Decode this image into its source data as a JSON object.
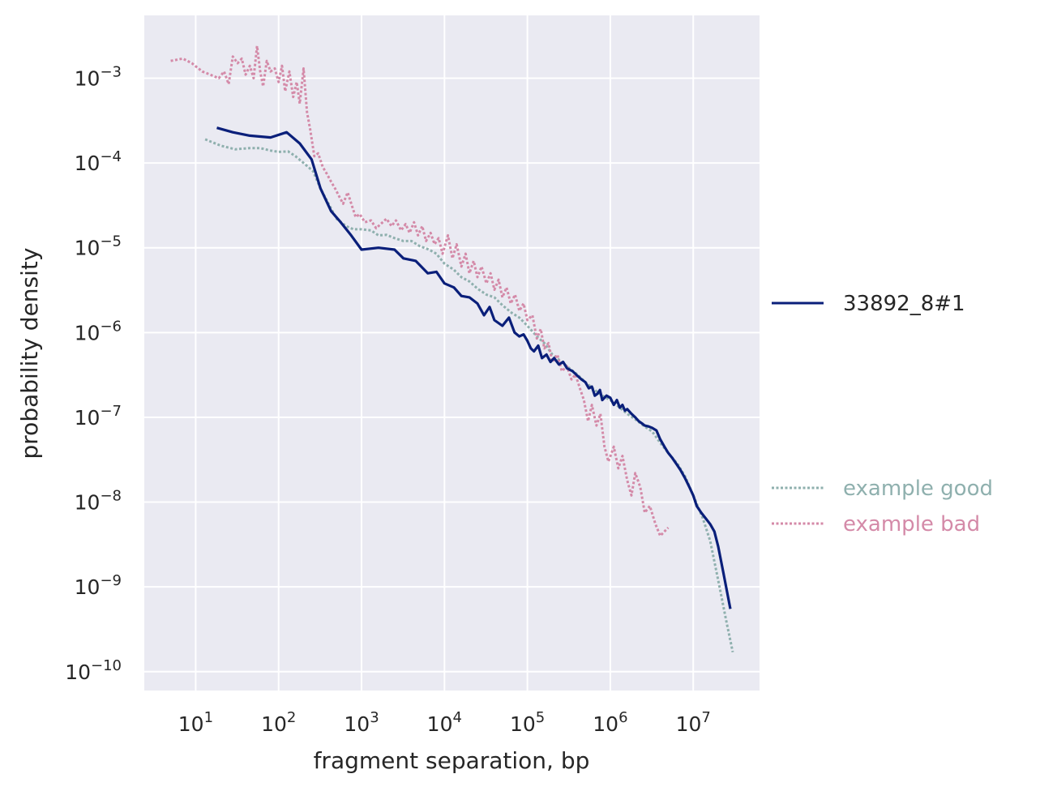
{
  "chart_data": {
    "type": "line",
    "xlabel": "fragment separation, bp",
    "ylabel": "probability density",
    "x_scale": "log",
    "y_scale": "log",
    "xlim": [
      2.4,
      63000000
    ],
    "ylim": [
      6e-11,
      0.0055
    ],
    "x_ticks": [
      {
        "value": 10,
        "base": "10",
        "exp": "1"
      },
      {
        "value": 100,
        "base": "10",
        "exp": "2"
      },
      {
        "value": 1000,
        "base": "10",
        "exp": "3"
      },
      {
        "value": 10000,
        "base": "10",
        "exp": "4"
      },
      {
        "value": 100000,
        "base": "10",
        "exp": "5"
      },
      {
        "value": 1000000,
        "base": "10",
        "exp": "6"
      },
      {
        "value": 10000000,
        "base": "10",
        "exp": "7"
      }
    ],
    "y_ticks": [
      {
        "value": 0.001,
        "base": "10",
        "exp": "−3"
      },
      {
        "value": 0.0001,
        "base": "10",
        "exp": "−4"
      },
      {
        "value": 1e-05,
        "base": "10",
        "exp": "−5"
      },
      {
        "value": 1e-06,
        "base": "10",
        "exp": "−6"
      },
      {
        "value": 1e-07,
        "base": "10",
        "exp": "−7"
      },
      {
        "value": 1e-08,
        "base": "10",
        "exp": "−8"
      },
      {
        "value": 1e-09,
        "base": "10",
        "exp": "−9"
      },
      {
        "value": 1e-10,
        "base": "10",
        "exp": "−10"
      }
    ],
    "grid": true,
    "legend_position": "right",
    "series": [
      {
        "name": "example good",
        "color": "#8fb0ae",
        "style": "dotted",
        "points": [
          [
            13,
            0.00019
          ],
          [
            20,
            0.00016
          ],
          [
            30,
            0.000145
          ],
          [
            45,
            0.00015
          ],
          [
            60,
            0.00015
          ],
          [
            80,
            0.00014
          ],
          [
            100,
            0.000135
          ],
          [
            130,
            0.000137
          ],
          [
            160,
            0.00012
          ],
          [
            200,
            0.0001
          ],
          [
            260,
            8e-05
          ],
          [
            320,
            5e-05
          ],
          [
            400,
            3.3e-05
          ],
          [
            500,
            2.2e-05
          ],
          [
            650,
            1.8e-05
          ],
          [
            800,
            1.65e-05
          ],
          [
            1000,
            1.65e-05
          ],
          [
            1300,
            1.6e-05
          ],
          [
            1600,
            1.4e-05
          ],
          [
            2000,
            1.42e-05
          ],
          [
            2500,
            1.3e-05
          ],
          [
            3200,
            1.2e-05
          ],
          [
            4000,
            1.2e-05
          ],
          [
            5000,
            1.05e-05
          ],
          [
            6500,
            9.5e-06
          ],
          [
            8000,
            8.5e-06
          ],
          [
            10000,
            6.5e-06
          ],
          [
            13000,
            5.5e-06
          ],
          [
            16000,
            4.5e-06
          ],
          [
            20000,
            4e-06
          ],
          [
            25000,
            3.3e-06
          ],
          [
            32000,
            2.8e-06
          ],
          [
            40000,
            2.6e-06
          ],
          [
            50000,
            2.1e-06
          ],
          [
            65000,
            1.7e-06
          ],
          [
            80000,
            1.5e-06
          ],
          [
            100000,
            1.2e-06
          ],
          [
            130000,
            9e-07
          ],
          [
            160000,
            7.5e-07
          ],
          [
            200000,
            5.5e-07
          ],
          [
            260000,
            4.5e-07
          ],
          [
            320000,
            3.8e-07
          ],
          [
            400000,
            3.2e-07
          ],
          [
            500000,
            2.6e-07
          ],
          [
            650000,
            2.1e-07
          ],
          [
            800000,
            1.8e-07
          ],
          [
            1000000,
            1.6e-07
          ],
          [
            1300000,
            1.3e-07
          ],
          [
            1600000,
            1.1e-07
          ],
          [
            2000000,
            9.5e-08
          ],
          [
            2500000,
            8e-08
          ],
          [
            3200000,
            6.8e-08
          ],
          [
            4000000,
            5e-08
          ],
          [
            5000000,
            3.8e-08
          ],
          [
            6500000,
            2.8e-08
          ],
          [
            8000000,
            2e-08
          ],
          [
            10000000,
            1.2e-08
          ],
          [
            13000000,
            6.5e-09
          ],
          [
            16000000,
            3.5e-09
          ],
          [
            20000000,
            1.2e-09
          ],
          [
            25000000,
            4e-10
          ],
          [
            30000000,
            1.7e-10
          ]
        ]
      },
      {
        "name": "example bad",
        "color": "#d48aa8",
        "style": "dotted",
        "points": [
          [
            5,
            0.0016
          ],
          [
            7,
            0.0017
          ],
          [
            9,
            0.0015
          ],
          [
            12,
            0.0012
          ],
          [
            15,
            0.0011
          ],
          [
            19,
            0.001
          ],
          [
            22,
            0.0012
          ],
          [
            25,
            0.00085
          ],
          [
            28,
            0.0018
          ],
          [
            32,
            0.0015
          ],
          [
            36,
            0.0017
          ],
          [
            40,
            0.0011
          ],
          [
            45,
            0.0014
          ],
          [
            50,
            0.001
          ],
          [
            55,
            0.0024
          ],
          [
            60,
            0.0012
          ],
          [
            65,
            0.0008
          ],
          [
            72,
            0.0016
          ],
          [
            80,
            0.0012
          ],
          [
            90,
            0.0013
          ],
          [
            100,
            0.0009
          ],
          [
            110,
            0.0014
          ],
          [
            120,
            0.0007
          ],
          [
            135,
            0.0012
          ],
          [
            150,
            0.0006
          ],
          [
            165,
            0.0009
          ],
          [
            180,
            0.0005
          ],
          [
            200,
            0.0013
          ],
          [
            220,
            0.0004
          ],
          [
            240,
            0.00025
          ],
          [
            270,
            0.00012
          ],
          [
            300,
            0.00013
          ],
          [
            340,
            9e-05
          ],
          [
            380,
            7.5e-05
          ],
          [
            430,
            6e-05
          ],
          [
            480,
            5e-05
          ],
          [
            540,
            4e-05
          ],
          [
            600,
            3.3e-05
          ],
          [
            680,
            4.5e-05
          ],
          [
            760,
            3.2e-05
          ],
          [
            850,
            2.3e-05
          ],
          [
            950,
            2.5e-05
          ],
          [
            1100,
            2e-05
          ],
          [
            1300,
            2.1e-05
          ],
          [
            1500,
            1.7e-05
          ],
          [
            1700,
            1.9e-05
          ],
          [
            2000,
            2.2e-05
          ],
          [
            2300,
            1.8e-05
          ],
          [
            2600,
            2.1e-05
          ],
          [
            3000,
            1.6e-05
          ],
          [
            3400,
            1.9e-05
          ],
          [
            3800,
            1.5e-05
          ],
          [
            4300,
            2e-05
          ],
          [
            4800,
            1.4e-05
          ],
          [
            5400,
            1.8e-05
          ],
          [
            6000,
            1.2e-05
          ],
          [
            6800,
            1.5e-05
          ],
          [
            7600,
            1.1e-05
          ],
          [
            8500,
            1.3e-05
          ],
          [
            9500,
            8.5e-06
          ],
          [
            11000,
            1.4e-05
          ],
          [
            12500,
            7.5e-06
          ],
          [
            14000,
            1.1e-05
          ],
          [
            16000,
            6e-06
          ],
          [
            18000,
            8.5e-06
          ],
          [
            20000,
            5e-06
          ],
          [
            22500,
            7e-06
          ],
          [
            25000,
            4.5e-06
          ],
          [
            28000,
            6e-06
          ],
          [
            32000,
            3.8e-06
          ],
          [
            36000,
            5e-06
          ],
          [
            40000,
            3.2e-06
          ],
          [
            45000,
            4.2e-06
          ],
          [
            50000,
            2.6e-06
          ],
          [
            56000,
            3.4e-06
          ],
          [
            63000,
            2.2e-06
          ],
          [
            71000,
            2.8e-06
          ],
          [
            80000,
            1.8e-06
          ],
          [
            90000,
            2.2e-06
          ],
          [
            100000,
            1.4e-06
          ],
          [
            115000,
            1.6e-06
          ],
          [
            130000,
            8.5e-07
          ],
          [
            145000,
            1.1e-06
          ],
          [
            160000,
            6.5e-07
          ],
          [
            180000,
            7.5e-07
          ],
          [
            200000,
            4.5e-07
          ],
          [
            230000,
            5.5e-07
          ],
          [
            260000,
            3.5e-07
          ],
          [
            300000,
            4e-07
          ],
          [
            340000,
            2.8e-07
          ],
          [
            380000,
            3.2e-07
          ],
          [
            430000,
            2.2e-07
          ],
          [
            480000,
            1.6e-07
          ],
          [
            540000,
            9e-08
          ],
          [
            600000,
            1.4e-07
          ],
          [
            680000,
            8e-08
          ],
          [
            760000,
            1.1e-07
          ],
          [
            850000,
            4.5e-08
          ],
          [
            950000,
            3e-08
          ],
          [
            1100000,
            4.5e-08
          ],
          [
            1250000,
            2.5e-08
          ],
          [
            1400000,
            3.5e-08
          ],
          [
            1600000,
            1.8e-08
          ],
          [
            1800000,
            1.2e-08
          ],
          [
            2000000,
            2.2e-08
          ],
          [
            2300000,
            1.5e-08
          ],
          [
            2600000,
            7.5e-09
          ],
          [
            3000000,
            9e-09
          ],
          [
            3500000,
            5.5e-09
          ],
          [
            4000000,
            4e-09
          ],
          [
            4500000,
            4.5e-09
          ],
          [
            5000000,
            5e-09
          ]
        ]
      },
      {
        "name": "33892_8#1",
        "color": "#0a1f7a",
        "style": "solid",
        "points": [
          [
            18,
            0.00026
          ],
          [
            28,
            0.00023
          ],
          [
            45,
            0.00021
          ],
          [
            80,
            0.0002
          ],
          [
            125,
            0.00023
          ],
          [
            180,
            0.00017
          ],
          [
            250,
            0.00011
          ],
          [
            320,
            5e-05
          ],
          [
            430,
            2.7e-05
          ],
          [
            560,
            2e-05
          ],
          [
            750,
            1.4e-05
          ],
          [
            1000,
            9.5e-06
          ],
          [
            1600,
            1e-05
          ],
          [
            2500,
            9.5e-06
          ],
          [
            3200,
            7.5e-06
          ],
          [
            4500,
            7e-06
          ],
          [
            6300,
            5e-06
          ],
          [
            8000,
            5.2e-06
          ],
          [
            10000,
            3.8e-06
          ],
          [
            13000,
            3.4e-06
          ],
          [
            16000,
            2.7e-06
          ],
          [
            20000,
            2.6e-06
          ],
          [
            25000,
            2.2e-06
          ],
          [
            30000,
            1.6e-06
          ],
          [
            35000,
            2e-06
          ],
          [
            40000,
            1.4e-06
          ],
          [
            50000,
            1.2e-06
          ],
          [
            60000,
            1.5e-06
          ],
          [
            70000,
            1e-06
          ],
          [
            80000,
            9e-07
          ],
          [
            90000,
            9.5e-07
          ],
          [
            100000,
            8e-07
          ],
          [
            110000,
            6.5e-07
          ],
          [
            120000,
            6e-07
          ],
          [
            135000,
            7e-07
          ],
          [
            150000,
            5e-07
          ],
          [
            170000,
            5.5e-07
          ],
          [
            190000,
            4.5e-07
          ],
          [
            210000,
            5e-07
          ],
          [
            240000,
            4.2e-07
          ],
          [
            270000,
            4.5e-07
          ],
          [
            300000,
            3.8e-07
          ],
          [
            350000,
            3.5e-07
          ],
          [
            400000,
            3.1e-07
          ],
          [
            450000,
            2.8e-07
          ],
          [
            500000,
            2.6e-07
          ],
          [
            550000,
            2.2e-07
          ],
          [
            600000,
            2.3e-07
          ],
          [
            650000,
            1.8e-07
          ],
          [
            700000,
            1.9e-07
          ],
          [
            750000,
            2.1e-07
          ],
          [
            800000,
            1.6e-07
          ],
          [
            900000,
            1.8e-07
          ],
          [
            1000000,
            1.7e-07
          ],
          [
            1100000,
            1.4e-07
          ],
          [
            1200000,
            1.6e-07
          ],
          [
            1300000,
            1.3e-07
          ],
          [
            1400000,
            1.4e-07
          ],
          [
            1500000,
            1.2e-07
          ],
          [
            1600000,
            1.25e-07
          ],
          [
            1800000,
            1.1e-07
          ],
          [
            2000000,
            1e-07
          ],
          [
            2200000,
            9e-08
          ],
          [
            2400000,
            8.5e-08
          ],
          [
            2600000,
            8e-08
          ],
          [
            2900000,
            7.8e-08
          ],
          [
            3200000,
            7.5e-08
          ],
          [
            3600000,
            7e-08
          ],
          [
            4000000,
            5.5e-08
          ],
          [
            4500000,
            4.5e-08
          ],
          [
            5000000,
            3.8e-08
          ],
          [
            5600000,
            3.3e-08
          ],
          [
            6300000,
            2.8e-08
          ],
          [
            7000000,
            2.4e-08
          ],
          [
            8000000,
            1.9e-08
          ],
          [
            9000000,
            1.5e-08
          ],
          [
            10000000,
            1.2e-08
          ],
          [
            11000000,
            9e-09
          ],
          [
            12500000,
            7.5e-09
          ],
          [
            14000000,
            6.5e-09
          ],
          [
            16000000,
            5.5e-09
          ],
          [
            18000000,
            4.5e-09
          ],
          [
            20000000,
            3e-09
          ],
          [
            23000000,
            1.5e-09
          ],
          [
            28000000,
            5.5e-10
          ]
        ]
      }
    ],
    "legend": [
      {
        "name": "33892_8#1",
        "color": "#0a1f7a",
        "style": "solid",
        "group": "primary"
      },
      {
        "name": "example good",
        "color": "#8fb0ae",
        "style": "dotted",
        "group": "examples"
      },
      {
        "name": "example bad",
        "color": "#d48aa8",
        "style": "dotted",
        "group": "examples"
      }
    ],
    "colors": {
      "plot_background": "#eaeaf2",
      "grid": "#ffffff",
      "text": "#262626"
    }
  }
}
